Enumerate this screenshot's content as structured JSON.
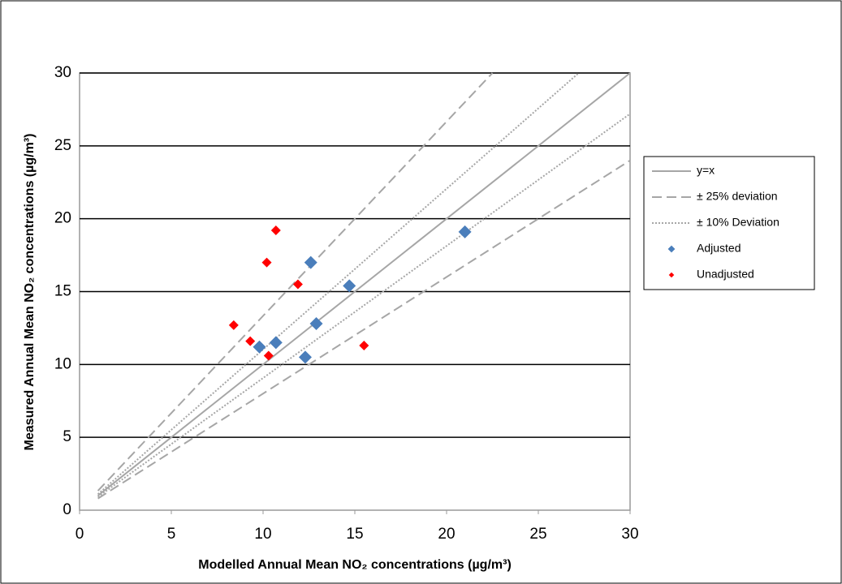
{
  "chart_data": {
    "type": "scatter",
    "x_label": "Modelled Annual Mean NO₂ concentrations (µg/m³)",
    "y_label": "Measured Annual Mean NO₂ concentrations (µg/m³)",
    "xlim": [
      0,
      30
    ],
    "ylim": [
      0,
      30
    ],
    "xticks": [
      0,
      5,
      10,
      15,
      20,
      25,
      30
    ],
    "yticks": [
      0,
      5,
      10,
      15,
      20,
      25,
      30
    ],
    "grid": true,
    "legend": "right",
    "series": [
      {
        "name": "y=x",
        "kind": "line",
        "dash": "solid",
        "color": "#a6a6a6",
        "x": [
          1,
          30
        ],
        "values": [
          1,
          30
        ]
      },
      {
        "name": "± 25% deviation",
        "kind": "line",
        "dash": "dashed",
        "color": "#a6a6a6",
        "x": [
          1,
          22.5,
          null,
          1,
          30
        ],
        "values": [
          1.33,
          30,
          null,
          0.8,
          24
        ]
      },
      {
        "name": "± 10% Deviation",
        "kind": "line",
        "dash": "dotted",
        "color": "#a6a6a6",
        "x": [
          1,
          27.2,
          null,
          1,
          30
        ],
        "values": [
          1.1,
          30,
          null,
          0.91,
          27.2
        ]
      },
      {
        "name": "Adjusted",
        "kind": "marker",
        "marker": "diamond",
        "size": 8,
        "color": "#4a7ebb",
        "x": [
          9.8,
          10.7,
          12.6,
          12.9,
          12.3,
          14.7,
          21.0
        ],
        "values": [
          11.2,
          11.5,
          17.0,
          12.8,
          10.5,
          15.4,
          19.1
        ]
      },
      {
        "name": "Unadjusted",
        "kind": "marker",
        "marker": "diamond",
        "size": 6,
        "color": "#ff0000",
        "x": [
          8.4,
          9.3,
          10.2,
          10.3,
          10.7,
          11.9,
          15.5
        ],
        "values": [
          12.7,
          11.6,
          17.0,
          10.6,
          19.2,
          15.5,
          11.3
        ]
      }
    ]
  }
}
